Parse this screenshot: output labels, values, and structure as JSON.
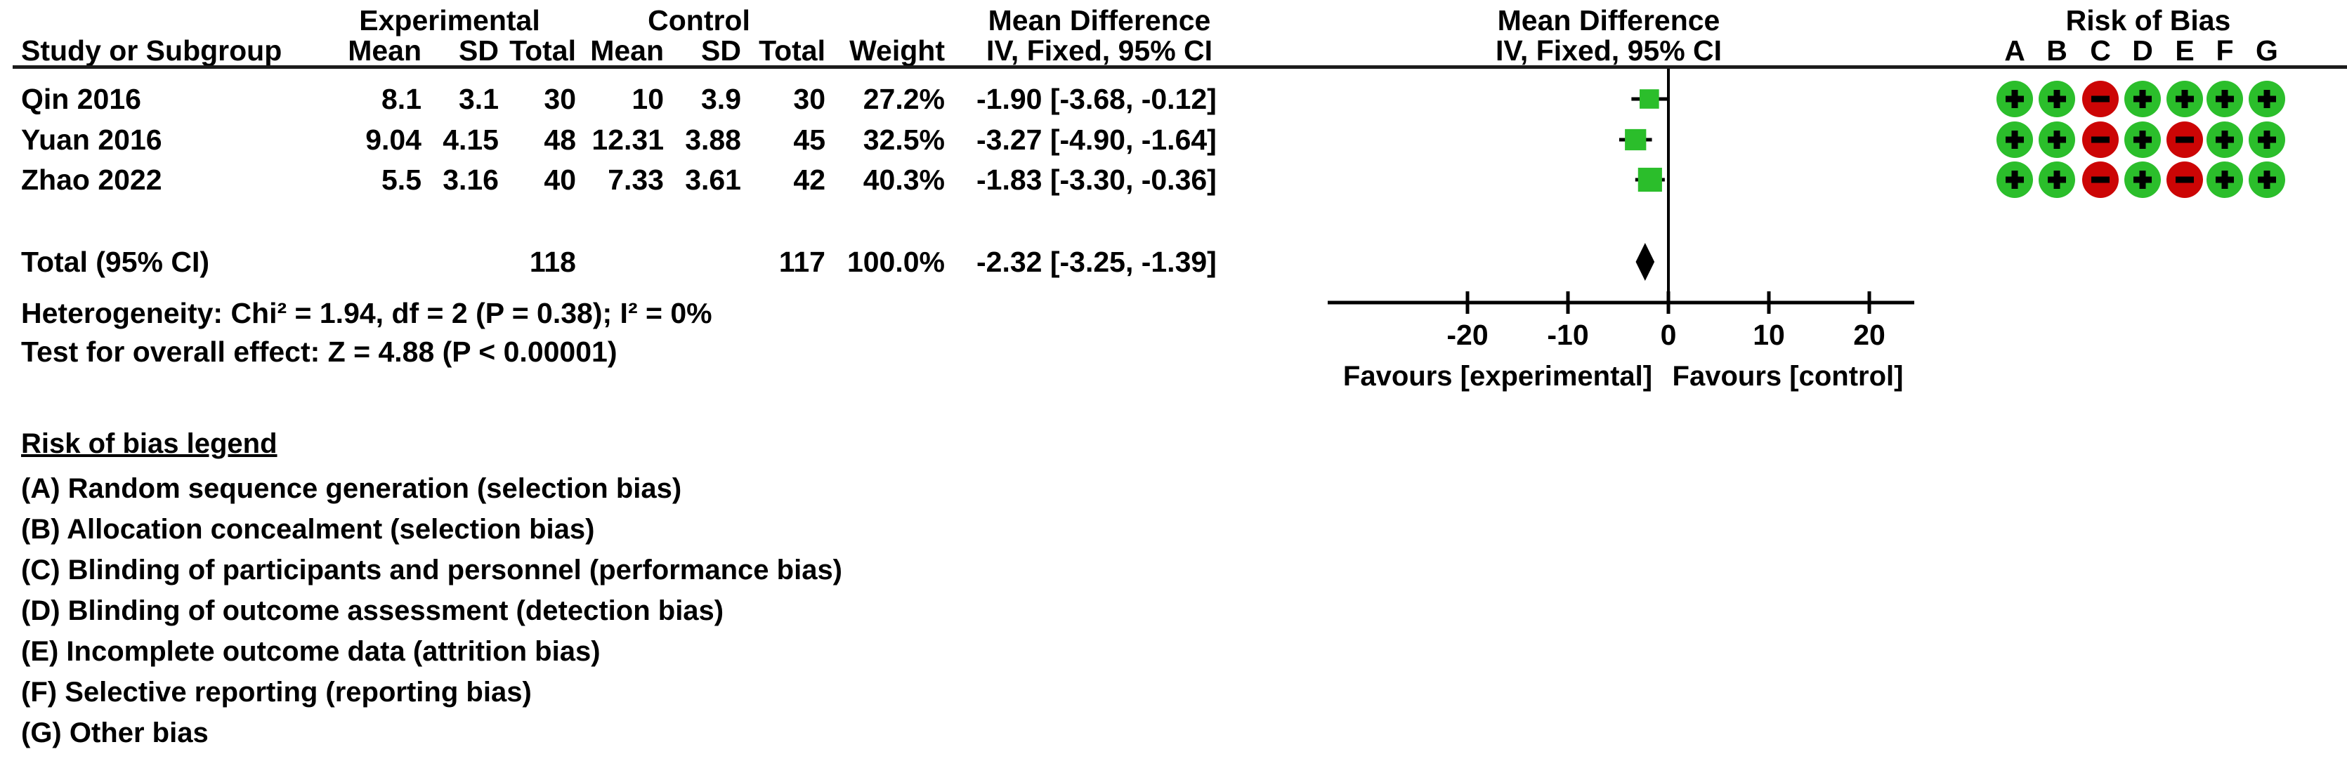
{
  "chart_data": {
    "type": "forest_plot",
    "header": {
      "group_experimental": "Experimental",
      "group_control": "Control",
      "mean_difference_text_col": "Mean Difference",
      "mean_difference_plot_col": "Mean Difference",
      "risk_of_bias_col": "Risk of Bias",
      "study_col": "Study or Subgroup",
      "mean_col": "Mean",
      "sd_col": "SD",
      "total_col": "Total",
      "weight_col": "Weight",
      "iv_text_col": "IV, Fixed, 95% CI",
      "iv_plot_col": "IV, Fixed, 95% CI",
      "rob_letters": [
        "A",
        "B",
        "C",
        "D",
        "E",
        "F",
        "G"
      ]
    },
    "studies": [
      {
        "name": "Qin 2016",
        "exp_mean": "8.1",
        "exp_sd": "3.1",
        "exp_total": "30",
        "ctrl_mean": "10",
        "ctrl_sd": "3.9",
        "ctrl_total": "30",
        "weight": "27.2%",
        "ci_text": "-1.90 [-3.68, -0.12]",
        "md": -1.9,
        "ci_low": -3.68,
        "ci_high": -0.12,
        "weight_pct": 27.2,
        "rob": [
          "+",
          "+",
          "-",
          "+",
          "+",
          "+",
          "+"
        ]
      },
      {
        "name": "Yuan 2016",
        "exp_mean": "9.04",
        "exp_sd": "4.15",
        "exp_total": "48",
        "ctrl_mean": "12.31",
        "ctrl_sd": "3.88",
        "ctrl_total": "45",
        "weight": "32.5%",
        "ci_text": "-3.27 [-4.90, -1.64]",
        "md": -3.27,
        "ci_low": -4.9,
        "ci_high": -1.64,
        "weight_pct": 32.5,
        "rob": [
          "+",
          "+",
          "-",
          "+",
          "-",
          "+",
          "+"
        ]
      },
      {
        "name": "Zhao 2022",
        "exp_mean": "5.5",
        "exp_sd": "3.16",
        "exp_total": "40",
        "ctrl_mean": "7.33",
        "ctrl_sd": "3.61",
        "ctrl_total": "42",
        "weight": "40.3%",
        "ci_text": "-1.83 [-3.30, -0.36]",
        "md": -1.83,
        "ci_low": -3.3,
        "ci_high": -0.36,
        "weight_pct": 40.3,
        "rob": [
          "+",
          "+",
          "-",
          "+",
          "-",
          "+",
          "+"
        ]
      }
    ],
    "total": {
      "label": "Total (95% CI)",
      "exp_total": "118",
      "ctrl_total": "117",
      "weight": "100.0%",
      "ci_text": "-2.32 [-3.25, -1.39]",
      "md": -2.32,
      "ci_low": -3.25,
      "ci_high": -1.39
    },
    "heterogeneity": "Heterogeneity: Chi² = 1.94, df = 2 (P = 0.38); I² = 0%",
    "overall_effect": "Test for overall effect: Z = 4.88 (P < 0.00001)",
    "axis": {
      "ticks": [
        -20,
        -10,
        0,
        10,
        20
      ],
      "favours_left": "Favours [experimental]",
      "favours_right": "Favours [control]"
    },
    "legend": {
      "title": "Risk of bias legend",
      "items": [
        "(A) Random sequence generation (selection bias)",
        "(B) Allocation concealment (selection bias)",
        "(C) Blinding of participants and personnel (performance bias)",
        "(D) Blinding of outcome assessment (detection bias)",
        "(E) Incomplete outcome data (attrition bias)",
        "(F) Selective reporting (reporting bias)",
        "(G) Other bias"
      ]
    },
    "colors": {
      "marker_green": "#2BBE2B",
      "rob_green": "#2BBE2B",
      "rob_red": "#CC0505",
      "ink": "#000000"
    }
  }
}
